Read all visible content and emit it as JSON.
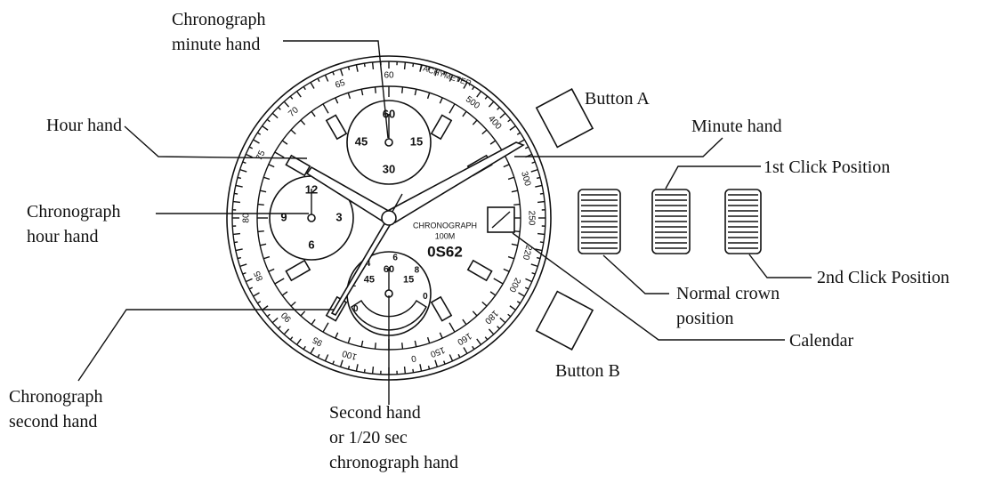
{
  "callouts": [
    {
      "lines": [
        "Chronograph",
        "minute hand"
      ]
    },
    {
      "lines": [
        "Hour hand"
      ]
    },
    {
      "lines": [
        "Chronograph",
        "hour hand"
      ]
    },
    {
      "lines": [
        "Chronograph",
        "second hand"
      ]
    },
    {
      "lines": [
        "Second hand",
        "or 1/20 sec",
        "chronograph hand"
      ]
    },
    {
      "lines": [
        "Button A"
      ]
    },
    {
      "lines": [
        "Minute hand"
      ]
    },
    {
      "lines": [
        "1st Click Position"
      ]
    },
    {
      "lines": [
        "2nd Click Position"
      ]
    },
    {
      "lines": [
        "Normal crown",
        "position"
      ]
    },
    {
      "lines": [
        "Calendar"
      ]
    },
    {
      "lines": [
        "Button B"
      ]
    }
  ],
  "dial": {
    "scale": "TACHYMETER",
    "brand": "CHRONOGRAPH",
    "depth": "100M",
    "caliber": "0S62",
    "tachymeter": [
      "60",
      "65",
      "70",
      "75",
      "80",
      "85",
      "90",
      "95",
      "100",
      "500",
      "400",
      "300",
      "250",
      "220",
      "200",
      "180",
      "160",
      "150",
      "0"
    ],
    "minute_subdial": [
      "60",
      "15",
      "30",
      "45"
    ],
    "hour_subdial": [
      "12",
      "3",
      "6",
      "9"
    ],
    "second_subdial": [
      "60",
      "15",
      "45"
    ],
    "second_scale": [
      "0",
      "2",
      "4",
      "6",
      "8",
      "0"
    ]
  }
}
